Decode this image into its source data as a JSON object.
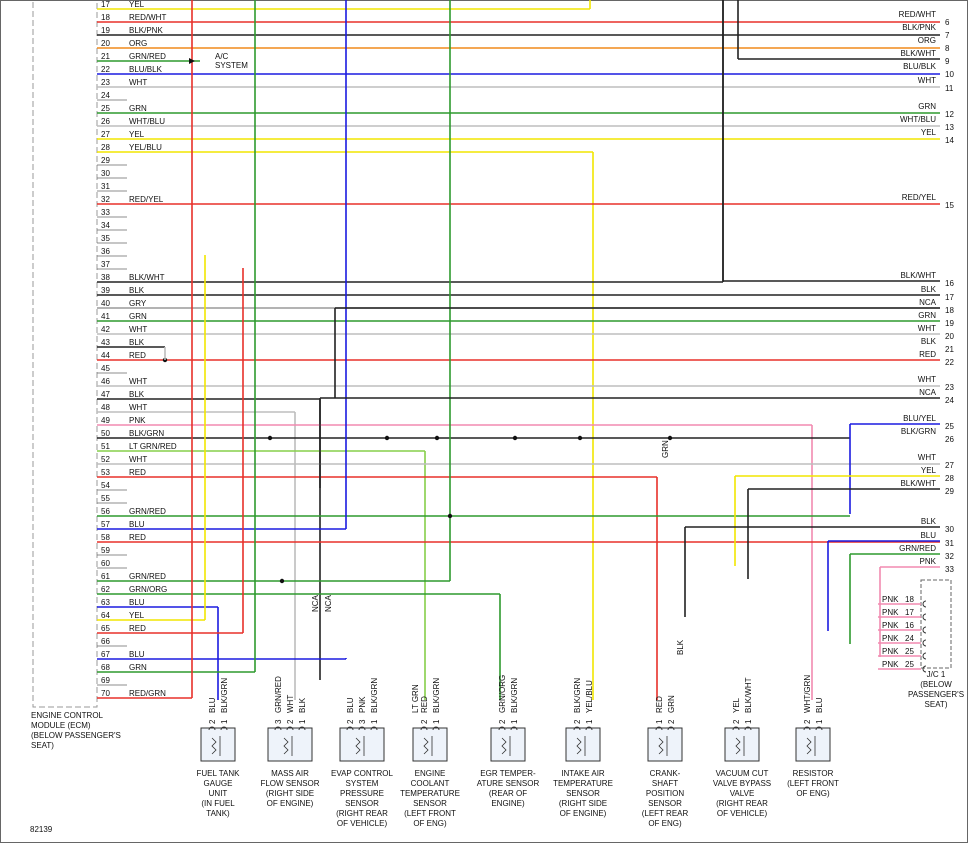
{
  "ecm": {
    "label": [
      "ENGINE CONTROL",
      "MODULE (ECM)",
      "(BELOW PASSENGER'S",
      "SEAT)"
    ],
    "pins": [
      {
        "num": "17",
        "wire": "YEL"
      },
      {
        "num": "18",
        "wire": "RED/WHT"
      },
      {
        "num": "19",
        "wire": "BLK/PNK"
      },
      {
        "num": "20",
        "wire": "ORG"
      },
      {
        "num": "21",
        "wire": "GRN/RED"
      },
      {
        "num": "22",
        "wire": "BLU/BLK"
      },
      {
        "num": "23",
        "wire": "WHT"
      },
      {
        "num": "24"
      },
      {
        "num": "25",
        "wire": "GRN"
      },
      {
        "num": "26",
        "wire": "WHT/BLU"
      },
      {
        "num": "27",
        "wire": "YEL"
      },
      {
        "num": "28",
        "wire": "YEL/BLU"
      },
      {
        "num": "29"
      },
      {
        "num": "30"
      },
      {
        "num": "31"
      },
      {
        "num": "32",
        "wire": "RED/YEL"
      },
      {
        "num": "33"
      },
      {
        "num": "34"
      },
      {
        "num": "35"
      },
      {
        "num": "36"
      },
      {
        "num": "37"
      },
      {
        "num": "38",
        "wire": "BLK/WHT"
      },
      {
        "num": "39",
        "wire": "BLK"
      },
      {
        "num": "40",
        "wire": "GRY"
      },
      {
        "num": "41",
        "wire": "GRN"
      },
      {
        "num": "42",
        "wire": "WHT"
      },
      {
        "num": "43",
        "wire": "BLK"
      },
      {
        "num": "44",
        "wire": "RED"
      },
      {
        "num": "45"
      },
      {
        "num": "46",
        "wire": "WHT"
      },
      {
        "num": "47",
        "wire": "BLK"
      },
      {
        "num": "48",
        "wire": "WHT"
      },
      {
        "num": "49",
        "wire": "PNK"
      },
      {
        "num": "50",
        "wire": "BLK/GRN"
      },
      {
        "num": "51",
        "wire": "LT GRN/RED"
      },
      {
        "num": "52",
        "wire": "WHT"
      },
      {
        "num": "53",
        "wire": "RED"
      },
      {
        "num": "54"
      },
      {
        "num": "55"
      },
      {
        "num": "56",
        "wire": "GRN/RED"
      },
      {
        "num": "57",
        "wire": "BLU"
      },
      {
        "num": "58",
        "wire": "RED"
      },
      {
        "num": "59"
      },
      {
        "num": "60"
      },
      {
        "num": "61",
        "wire": "GRN/RED"
      },
      {
        "num": "62",
        "wire": "GRN/ORG"
      },
      {
        "num": "63",
        "wire": "BLU"
      },
      {
        "num": "64",
        "wire": "YEL"
      },
      {
        "num": "65",
        "wire": "RED"
      },
      {
        "num": "66"
      },
      {
        "num": "67",
        "wire": "BLU"
      },
      {
        "num": "68",
        "wire": "GRN"
      },
      {
        "num": "69"
      },
      {
        "num": "70",
        "wire": "RED/GRN"
      }
    ]
  },
  "right": [
    {
      "wire": "RED/WHT",
      "num": "6"
    },
    {
      "wire": "BLK/PNK",
      "num": "7"
    },
    {
      "wire": "ORG",
      "num": "8"
    },
    {
      "wire": "BLK/WHT",
      "num": "9"
    },
    {
      "wire": "BLU/BLK",
      "num": "10"
    },
    {
      "wire": "WHT",
      "num": "11"
    },
    {
      "wire": "GRN",
      "num": "12"
    },
    {
      "wire": "WHT/BLU",
      "num": "13"
    },
    {
      "wire": "YEL",
      "num": "14"
    },
    {
      "wire": "RED/YEL",
      "num": "15"
    },
    {
      "wire": "BLK/WHT",
      "num": "16"
    },
    {
      "wire": "BLK",
      "num": "17"
    },
    {
      "wire": "NCA",
      "num": "18"
    },
    {
      "wire": "GRN",
      "num": "19"
    },
    {
      "wire": "WHT",
      "num": "20"
    },
    {
      "wire": "BLK",
      "num": "21"
    },
    {
      "wire": "RED",
      "num": "22"
    },
    {
      "wire": "WHT",
      "num": "23"
    },
    {
      "wire": "NCA",
      "num": "24"
    },
    {
      "wire": "BLU/YEL",
      "num": "25"
    },
    {
      "wire": "BLK/GRN",
      "num": "26"
    },
    {
      "wire": "WHT",
      "num": "27"
    },
    {
      "wire": "YEL",
      "num": "28"
    },
    {
      "wire": "BLK/WHT",
      "num": "29"
    },
    {
      "wire": "BLK",
      "num": "30"
    },
    {
      "wire": "BLU",
      "num": "31"
    },
    {
      "wire": "GRN/RED",
      "num": "32"
    },
    {
      "wire": "PNK",
      "num": "33"
    }
  ],
  "components": [
    {
      "name": [
        "FUEL TANK",
        "GAUGE",
        "UNIT",
        "(IN FUEL",
        "TANK)"
      ],
      "pins": [
        {
          "num": "2",
          "wire": "BLU"
        },
        {
          "num": "1",
          "wire": "BLK/GRN"
        }
      ]
    },
    {
      "name": [
        "MASS AIR",
        "FLOW SENSOR",
        "(RIGHT SIDE",
        "OF ENGINE)"
      ],
      "pins": [
        {
          "num": "3",
          "wire": "GRN/RED"
        },
        {
          "num": "2",
          "wire": "WHT"
        },
        {
          "num": "1",
          "wire": "BLK"
        }
      ]
    },
    {
      "name": [
        "EVAP CONTROL",
        "SYSTEM",
        "PRESSURE",
        "SENSOR",
        "(RIGHT REAR",
        "OF VEHICLE)"
      ],
      "pins": [
        {
          "num": "2",
          "wire": "BLU"
        },
        {
          "num": "3",
          "wire": "PNK"
        },
        {
          "num": "1",
          "wire": "BLK/GRN"
        }
      ]
    },
    {
      "name": [
        "ENGINE",
        "COOLANT",
        "TEMPERATURE",
        "SENSOR",
        "(LEFT FRONT",
        "OF ENG)"
      ],
      "pins": [
        {
          "num": "2",
          "wire": [
            "LT GRN",
            "RED"
          ]
        },
        {
          "num": "1",
          "wire": "BLK/GRN"
        }
      ]
    },
    {
      "name": [
        "EGR TEMPER-",
        "ATURE SENSOR",
        "(REAR OF",
        "ENGINE)"
      ],
      "pins": [
        {
          "num": "2",
          "wire": "GRN/ORG"
        },
        {
          "num": "1",
          "wire": "BLK/GRN"
        }
      ]
    },
    {
      "name": [
        "INTAKE AIR",
        "TEMPERATURE",
        "SENSOR",
        "(RIGHT SIDE",
        "OF ENGINE)"
      ],
      "pins": [
        {
          "num": "2",
          "wire": "BLK/GRN"
        },
        {
          "num": "1",
          "wire": "YEL/BLU"
        }
      ]
    },
    {
      "name": [
        "CRANK-",
        "SHAFT",
        "POSITION",
        "SENSOR",
        "(LEFT REAR",
        "OF ENG)"
      ],
      "pins": [
        {
          "num": "1",
          "wire": "RED"
        },
        {
          "num": "2",
          "wire": "GRN"
        }
      ]
    },
    {
      "name": [
        "VACUUM CUT",
        "VALVE BYPASS",
        "VALVE",
        "(RIGHT REAR",
        "OF VEHICLE)"
      ],
      "pins": [
        {
          "num": "2",
          "wire": "YEL"
        },
        {
          "num": "1",
          "wire": "BLK/WHT"
        }
      ]
    },
    {
      "name": [
        "RESISTOR",
        "(LEFT FRONT",
        "OF ENG)"
      ],
      "pins": [
        {
          "num": "2",
          "wire": "WHT/GRN"
        },
        {
          "num": "1",
          "wire": "BLU"
        }
      ]
    }
  ],
  "junction": {
    "label": [
      "J/C 1",
      "(BELOW",
      "PASSENGER'S",
      "SEAT)"
    ],
    "rows": [
      {
        "wire": "PNK",
        "num": "18"
      },
      {
        "wire": "PNK",
        "num": "17"
      },
      {
        "wire": "PNK",
        "num": "16"
      },
      {
        "wire": "PNK",
        "num": "24"
      },
      {
        "wire": "PNK",
        "num": "25"
      },
      {
        "wire": "PNK",
        "num": "25"
      }
    ]
  },
  "annotations": {
    "ac_system": [
      "A/C",
      "SYSTEM"
    ],
    "nca_1": "NCA",
    "nca_2": "NCA",
    "ckp_grn": "GRN",
    "ckp_shield": "BLK",
    "figure_id": "82139"
  },
  "wire_colors": {
    "RED": "#e8302a",
    "YEL": "#f2e600",
    "BLK": "#222222",
    "ORG": "#f08a1c",
    "GRN": "#2e9a2e",
    "BLU": "#1b1be0",
    "WHT": "#bdbdbd",
    "GRY": "#9a9a9a",
    "PNK": "#f28ab0",
    "LT GRN": "#86cf4a",
    "NCA": "#222222"
  }
}
